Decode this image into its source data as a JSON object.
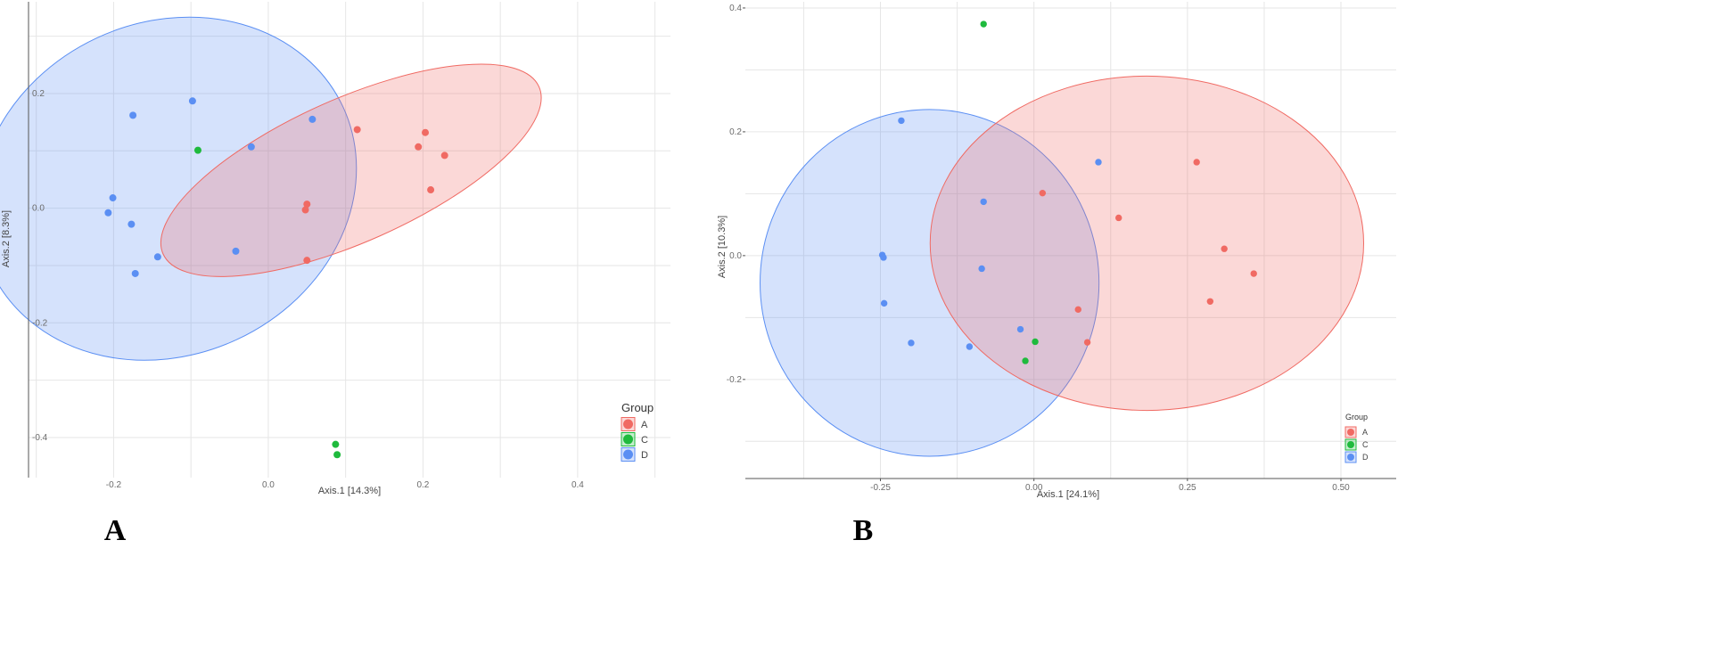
{
  "colors": {
    "A": "#f06a63",
    "C": "#1fba3d",
    "D": "#5b8ff3"
  },
  "chart_data": [
    {
      "type": "scatter",
      "panel_label": "A",
      "xlabel": "Axis.1   [14.3%]",
      "ylabel": "Axis.2   [8.3%]",
      "xlim": [
        -0.31,
        0.52
      ],
      "ylim": [
        -0.47,
        0.36
      ],
      "xticks": [
        -0.2,
        0.0,
        0.2,
        0.4
      ],
      "xtick_labels": [
        "-0.2",
        "0.0",
        "0.2",
        "0.4"
      ],
      "yticks": [
        0.2,
        0.0,
        -0.2,
        -0.4
      ],
      "ytick_labels": [
        "0.2",
        "0.0",
        "-0.2",
        "-0.4"
      ],
      "grid": true,
      "legend": {
        "title": "Group",
        "position": "bottom-right",
        "entries": [
          "A",
          "C",
          "D"
        ]
      },
      "series": [
        {
          "name": "A",
          "points": [
            [
              0.115,
              0.137
            ],
            [
              0.203,
              0.132
            ],
            [
              0.194,
              0.107
            ],
            [
              0.228,
              0.092
            ],
            [
              0.21,
              0.032
            ],
            [
              0.05,
              0.007
            ],
            [
              0.048,
              -0.003
            ],
            [
              0.05,
              -0.091
            ]
          ]
        },
        {
          "name": "C",
          "points": [
            [
              -0.091,
              0.101
            ],
            [
              0.087,
              -0.412
            ],
            [
              0.089,
              -0.43
            ]
          ]
        },
        {
          "name": "D",
          "points": [
            [
              -0.175,
              0.162
            ],
            [
              -0.098,
              0.187
            ],
            [
              -0.022,
              0.107
            ],
            [
              0.057,
              0.155
            ],
            [
              -0.201,
              0.018
            ],
            [
              -0.207,
              -0.008
            ],
            [
              -0.177,
              -0.028
            ],
            [
              -0.143,
              -0.085
            ],
            [
              -0.172,
              -0.114
            ],
            [
              -0.042,
              -0.075
            ]
          ]
        }
      ],
      "ellipses": [
        {
          "group": "D",
          "center": [
            -0.131,
            0.034
          ],
          "rx": 0.251,
          "ry": 0.29,
          "rotation_deg": -25
        },
        {
          "group": "A",
          "center": [
            0.107,
            0.066
          ],
          "rx": 0.266,
          "ry": 0.125,
          "rotation_deg": -24
        }
      ]
    },
    {
      "type": "scatter",
      "panel_label": "B",
      "xlabel": "Axis.1   [24.1%]",
      "ylabel": "Axis.2   [10.3%]",
      "xlim": [
        -0.47,
        0.59
      ],
      "ylim": [
        -0.36,
        0.41
      ],
      "xticks": [
        -0.25,
        0.0,
        0.25,
        0.5
      ],
      "xtick_labels": [
        "-0.25",
        "0.00",
        "0.25",
        "0.50"
      ],
      "yticks": [
        0.4,
        0.2,
        0.0,
        -0.2
      ],
      "ytick_labels": [
        "0.4",
        "0.2",
        "0.0",
        "-0.2"
      ],
      "grid": true,
      "legend": {
        "title": "Group",
        "position": "bottom-right",
        "entries": [
          "A",
          "C",
          "D"
        ]
      },
      "series": [
        {
          "name": "A",
          "points": [
            [
              0.014,
              0.101
            ],
            [
              0.138,
              0.061
            ],
            [
              0.265,
              0.151
            ],
            [
              0.31,
              0.011
            ],
            [
              0.358,
              -0.029
            ],
            [
              0.287,
              -0.074
            ],
            [
              0.072,
              -0.087
            ],
            [
              0.087,
              -0.14
            ]
          ]
        },
        {
          "name": "C",
          "points": [
            [
              -0.082,
              0.374
            ],
            [
              0.002,
              -0.139
            ],
            [
              -0.014,
              -0.17
            ]
          ]
        },
        {
          "name": "D",
          "points": [
            [
              -0.216,
              0.218
            ],
            [
              0.105,
              0.151
            ],
            [
              -0.082,
              0.087
            ],
            [
              -0.085,
              -0.021
            ],
            [
              -0.247,
              0.001
            ],
            [
              -0.245,
              -0.003
            ],
            [
              -0.244,
              -0.077
            ],
            [
              -0.2,
              -0.141
            ],
            [
              -0.105,
              -0.147
            ],
            [
              -0.022,
              -0.119
            ]
          ]
        }
      ],
      "ellipses": [
        {
          "group": "D",
          "center": [
            -0.17,
            -0.044
          ],
          "rx": 0.276,
          "ry": 0.28,
          "rotation_deg": 0
        },
        {
          "group": "A",
          "center": [
            0.184,
            0.02
          ],
          "rx": 0.353,
          "ry": 0.27,
          "rotation_deg": 0
        }
      ]
    }
  ]
}
